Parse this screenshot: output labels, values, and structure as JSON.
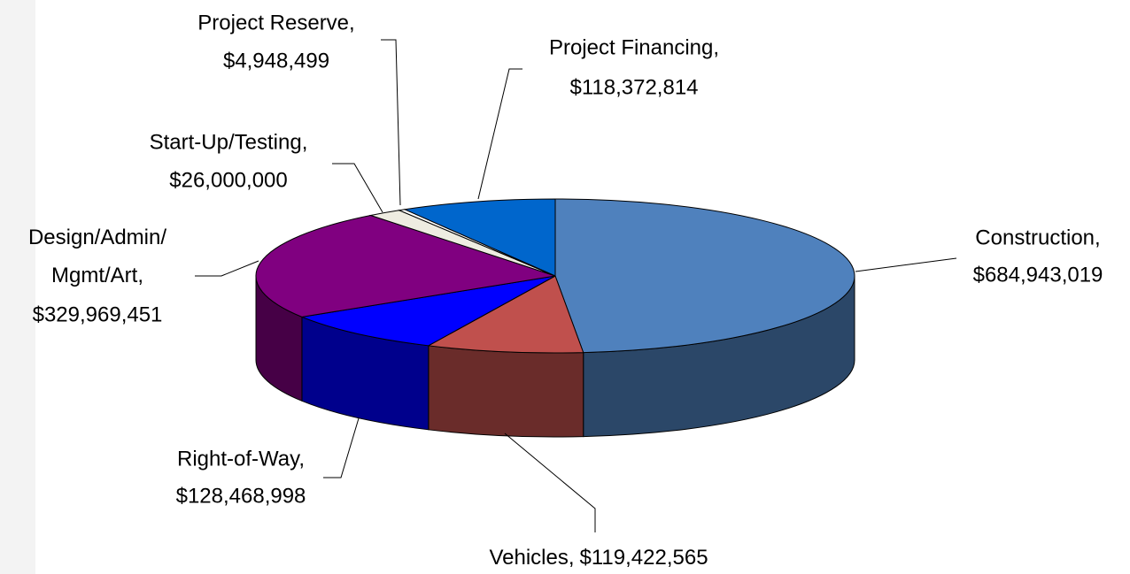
{
  "chart_data": {
    "type": "pie",
    "categories": [
      "Construction,",
      "Vehicles,",
      "Right-of-Way,",
      "Design/Admin/Mgmt/Art,",
      "Start-Up/Testing,",
      "Project Reserve,",
      "Project Financing,"
    ],
    "values": [
      684943019,
      119422565,
      128468998,
      329969451,
      26000000,
      4948499,
      118372814
    ],
    "value_labels": [
      "$684,943,019",
      "$119,422,565",
      "$128,468,998",
      "$329,969,451",
      "$26,000,000",
      "$4,948,499",
      "$118,372,814"
    ],
    "colors": [
      "#4f81bd",
      "#c0504d",
      "#0000ff",
      "#800080",
      "#eeece1",
      "#ffffff",
      "#0066cc"
    ],
    "three_d": true
  }
}
